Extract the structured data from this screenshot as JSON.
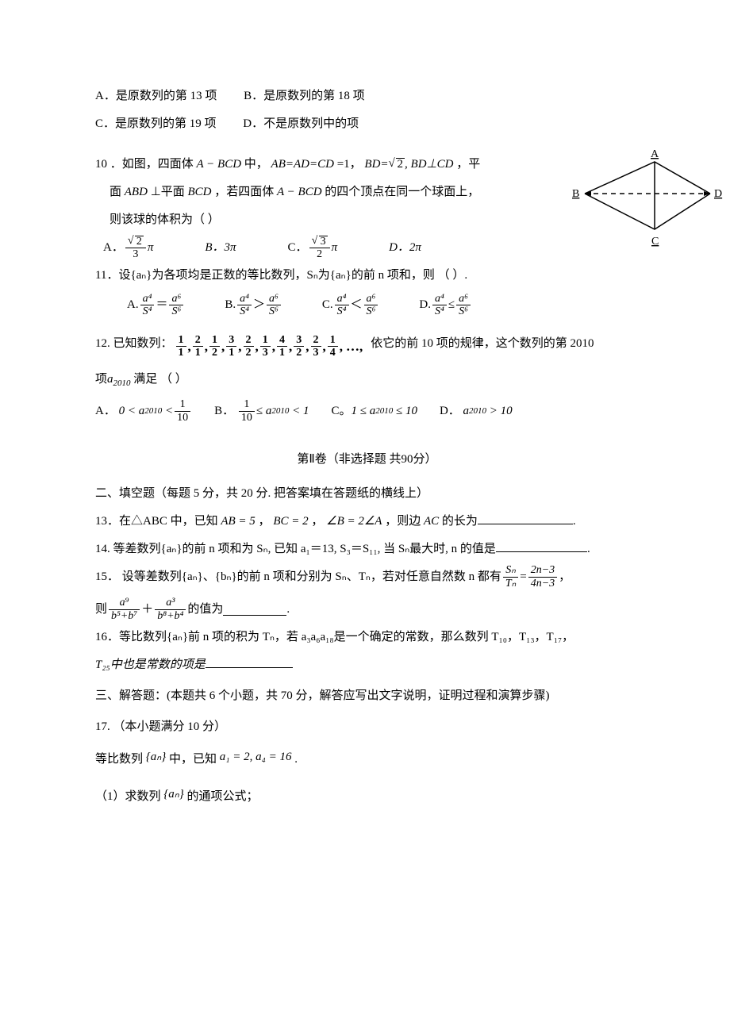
{
  "q9": {
    "optA": "A．是原数列的第 13 项",
    "optB": "B．是原数列的第 18 项",
    "optC": "C．是原数列的第 19 项",
    "optD": "D．不是原数列中的项"
  },
  "q10": {
    "prefix": "10 ．如图，四面体",
    "body1": "A − BCD",
    "mid1": "中，",
    "eq1": "AB=AD=CD",
    "eqv1": "=1，",
    "eq2": "BD=",
    "sqrt2": "2",
    "eq3": ", BD⊥CD",
    "tail1": "，平",
    "line2a": "面",
    "abd": "ABD",
    "perp": "⊥平面",
    "bcd": "BCD",
    "line2b": "，若四面体",
    "abcd": "A − BCD",
    "line2c": "的四个顶点在同一个球面上，",
    "line3": "则该球的体积为（      ）",
    "optA_label": "A．",
    "optA_num": "2",
    "optA_den": "3",
    "optA_pi": "π",
    "optB": "B．3π",
    "optC_label": "C．",
    "optC_num": "3",
    "optC_den": "2",
    "optC_pi": "π",
    "optD": "D．2π",
    "figure": {
      "labelA": "A",
      "labelB": "B",
      "labelC": "C",
      "labelD": "D",
      "stroke": "#000000",
      "bg": "#ffffff"
    }
  },
  "q11": {
    "text": "11．设{aₙ}为各项均是正数的等比数列，Sₙ为{aₙ}的前 n 项和，则        （      ）.",
    "labels": {
      "A": "A.",
      "B": "B.",
      "C": "C.",
      "D": "D."
    },
    "lhs_num": "a⁴",
    "lhs_den": "S⁴",
    "rhs_num": "a⁶",
    "rhs_den": "S⁶",
    "ops": {
      "A": "＝",
      "B": "＞",
      "C": "＜",
      "D": "≤"
    }
  },
  "q12": {
    "prefix": "12. 已知数列：",
    "fracs": [
      {
        "n": "1",
        "d": "1"
      },
      {
        "n": "2",
        "d": "1"
      },
      {
        "n": "1",
        "d": "2"
      },
      {
        "n": "3",
        "d": "1"
      },
      {
        "n": "2",
        "d": "2"
      },
      {
        "n": "1",
        "d": "3"
      },
      {
        "n": "4",
        "d": "1"
      },
      {
        "n": "3",
        "d": "2"
      },
      {
        "n": "2",
        "d": "3"
      },
      {
        "n": "1",
        "d": "4"
      }
    ],
    "ellipsis": ",…,",
    "suffix": "依它的前 10 项的规律，这个数列的第 2010",
    "line2a": "项",
    "a2010": "a",
    "sub2010": "2010",
    "line2b": "满足  （      ）",
    "optA": "A．",
    "optA_expr_lt0": "0 <",
    "optA_a": "a",
    "optA_lt": "<",
    "optA_num": "1",
    "optA_den": "10",
    "optB": "B．",
    "optB_num": "1",
    "optB_den": "10",
    "optB_mid": "≤",
    "optB_a": "a",
    "optB_tail": "< 1",
    "optC": "C。",
    "optC_expr": "1 ≤",
    "optC_a": "a",
    "optC_tail": "≤ 10",
    "optD": "D．",
    "optD_a": "a",
    "optD_tail": "> 10"
  },
  "sectionII": "第Ⅱ卷（非选择题 共90分）",
  "fillHeader": "二、填空题（每题 5 分，共 20 分. 把答案填在答题纸的横线上）",
  "q13": {
    "pre": "13．在△ABC 中，已知",
    "ab": "AB = 5",
    "comma1": "，",
    "bc": "BC = 2",
    "comma2": "，",
    "ang": "∠B = 2∠A",
    "mid": "，则边",
    "ac": "AC",
    "tail": "的长为",
    "period": "."
  },
  "q14": {
    "text": "14. 等差数列{aₙ}的前 n 项和为 Sₙ, 已知 a₁＝13, S₃＝S₁₁, 当 Sₙ最大时, n 的值是",
    "period": "."
  },
  "q15": {
    "line1a": "15．  设等差数列{aₙ}、{bₙ}的前 n 项和分别为 Sₙ、Tₙ，若对任意自然数 n 都有",
    "r_num_l": "Sₙ",
    "r_den_l": "Tₙ",
    "eq": "=",
    "r_num_r": "2n−3",
    "r_den_r": "4n−3",
    "comma": "，",
    "line2a": "则",
    "f1_num": "a⁹",
    "f1_den": "b⁵+b⁷",
    "plus": "＋",
    "f2_num": "a³",
    "f2_den": "b⁸+b⁴",
    "line2b": "的值为",
    "period": "."
  },
  "q16": {
    "line1": " 16．等比数列{aₙ}前 n 项的积为 Tₙ，若 a₃a₆a₁₈是一个确定的常数，那么数列 T₁₀，T₁₃，T₁₇，",
    "line2a": "T₂₅中也是常数的项是"
  },
  "ansHeader": "三、解答题：(本题共 6 个小题，共 70 分，解答应写出文字说明，证明过程和演算步骤)",
  "q17": {
    "header": "17. （本小题满分 10 分）",
    "l1a": "等比数列 ",
    "brace_an": "{aₙ}",
    "l1b": " 中，已知 ",
    "eq": "a₁ = 2, a₄ = 16",
    "l1c": "    .",
    "l2": "（1）求数列 ",
    "l2b": " 的通项公式；"
  },
  "style": {
    "blank_widths": {
      "q13": 120,
      "q14": 115,
      "q15": 80,
      "q16": 110
    },
    "text_color": "#000000",
    "background": "#ffffff",
    "base_font_size": 15
  }
}
